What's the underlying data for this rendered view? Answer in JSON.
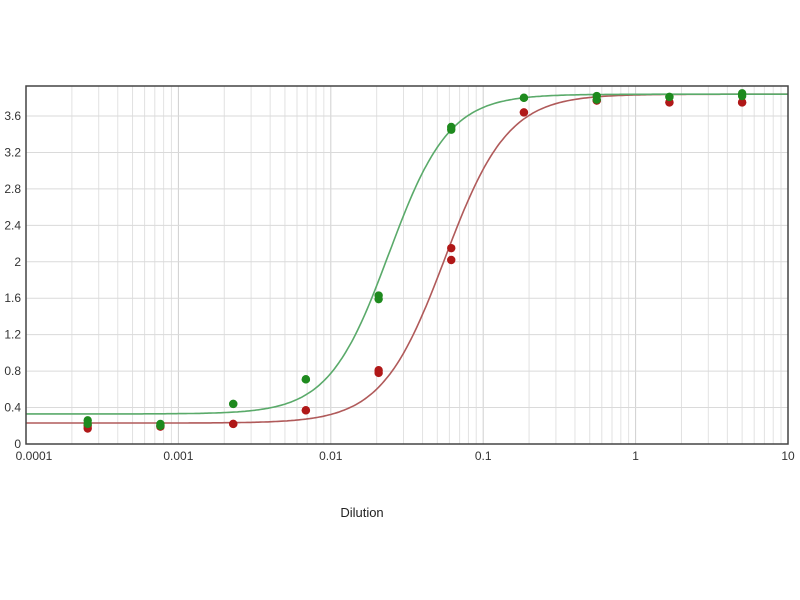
{
  "chart_data": {
    "type": "scatter",
    "title": "",
    "xlabel": "Dilution",
    "ylabel": "",
    "xscale": "log",
    "xlim": [
      0.0001,
      10
    ],
    "ylim": [
      0,
      3.93
    ],
    "grid": true,
    "legend": "none",
    "x_ticks": [
      "0.0001",
      "0.001",
      "0.01",
      "0.1",
      "1",
      "10"
    ],
    "y_ticks": [
      "0",
      "0.4",
      "0.8",
      "1.2",
      "1.6",
      "2",
      "2.4",
      "2.8",
      "3.2",
      "3.6"
    ],
    "x": [
      0.000254,
      0.000762,
      0.00229,
      0.00686,
      0.0206,
      0.0617,
      0.185,
      0.556,
      1.667,
      5
    ],
    "series": [
      {
        "color": "#1e8a1e",
        "line_color": "#5aaa6a",
        "replicates": [
          [
            0.26,
            0.22,
            0.44,
            0.71,
            1.63,
            3.48,
            3.8,
            3.82,
            3.81,
            3.85
          ],
          [
            0.22,
            0.2,
            0.44,
            0.71,
            1.59,
            3.45,
            3.8,
            3.78,
            3.81,
            3.82
          ]
        ],
        "fit": {
          "bottom": 0.33,
          "top": 3.84,
          "ec50": 0.024,
          "hill": 2.2
        }
      },
      {
        "color": "#b01818",
        "line_color": "#b05a5a",
        "replicates": [
          [
            0.2,
            0.2,
            0.22,
            0.37,
            0.81,
            2.15,
            3.64,
            3.77,
            3.75,
            3.75
          ],
          [
            0.17,
            0.19,
            0.22,
            0.37,
            0.78,
            2.02,
            3.64,
            3.77,
            3.75,
            3.75
          ]
        ],
        "fit": {
          "bottom": 0.23,
          "top": 3.84,
          "ec50": 0.056,
          "hill": 2.1
        }
      }
    ]
  }
}
